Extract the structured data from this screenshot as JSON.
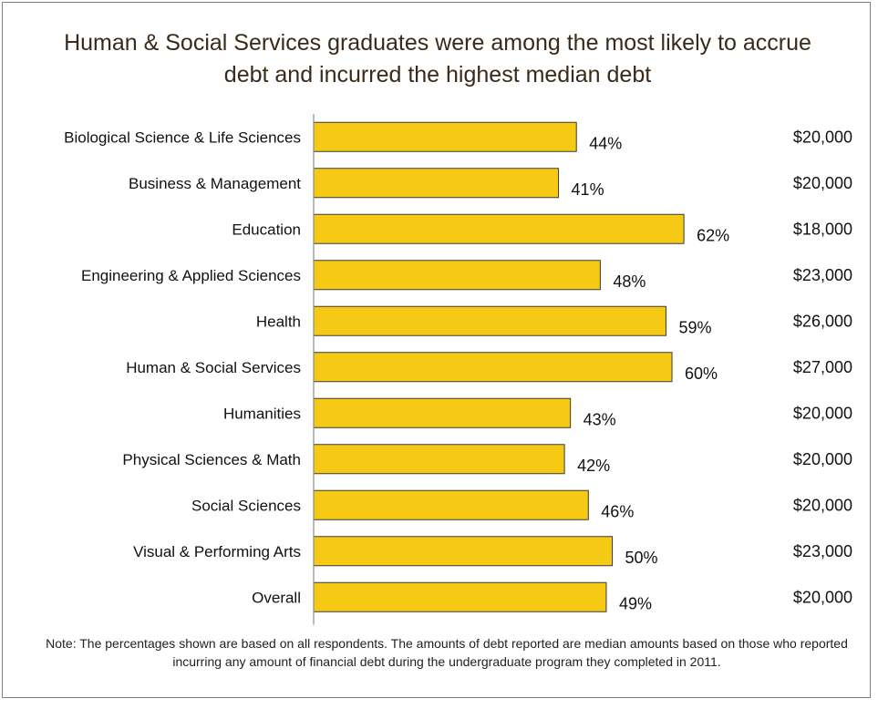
{
  "title": "Human & Social Services graduates were among the most likely to accrue debt and incurred the highest median debt",
  "note": "Note: The percentages shown are based on all respondents. The amounts of debt reported are median amounts based on those who reported incurring any amount of financial debt during the undergraduate program they completed in 2011.",
  "colors": {
    "bar": "#f6c915",
    "bar_border": "#3a3a3a",
    "axis": "#8c8c8c"
  },
  "chart_data": {
    "type": "bar",
    "orientation": "horizontal",
    "title": "Human & Social Services graduates were among the most likely to accrue debt and incurred the highest median debt",
    "categories": [
      "Biological Science & Life Sciences",
      "Business & Management",
      "Education",
      "Engineering & Applied Sciences",
      "Health",
      "Human & Social Services",
      "Humanities",
      "Physical Sciences & Math",
      "Social Sciences",
      "Visual & Performing Arts",
      "Overall"
    ],
    "series": [
      {
        "values": [
          44,
          41,
          62,
          48,
          59,
          60,
          43,
          42,
          46,
          50,
          49
        ]
      }
    ],
    "value_labels": [
      "44%",
      "41%",
      "62%",
      "48%",
      "59%",
      "60%",
      "43%",
      "42%",
      "46%",
      "50%",
      "49%"
    ],
    "median_debt": [
      "$20,000",
      "$20,000",
      "$18,000",
      "$23,000",
      "$26,000",
      "$27,000",
      "$20,000",
      "$20,000",
      "$20,000",
      "$23,000",
      "$20,000"
    ],
    "xlim": [
      0,
      100
    ],
    "grid": false
  }
}
